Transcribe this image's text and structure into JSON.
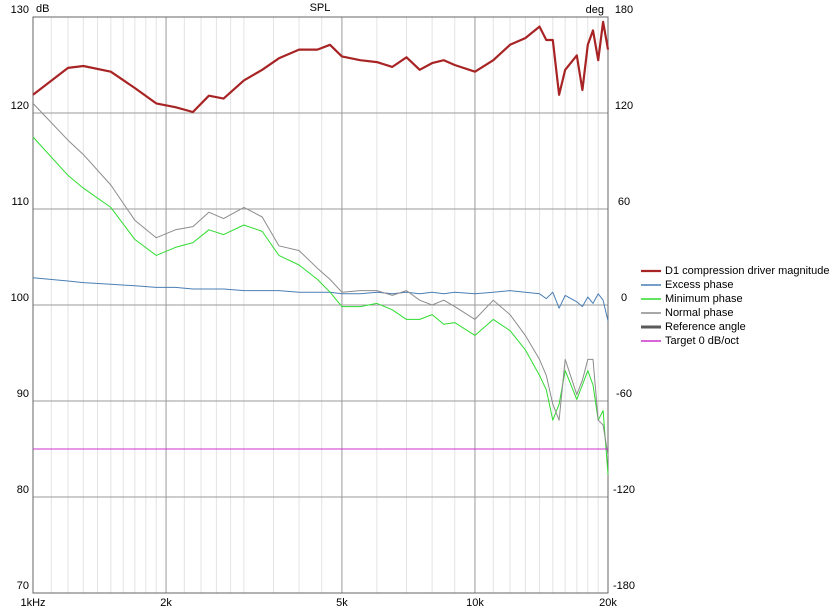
{
  "chart_data": {
    "type": "line",
    "title": "SPL",
    "ylabel": "dB",
    "y2label": "deg",
    "log_x": true,
    "grid": true,
    "legend_position": "right",
    "xlim": [
      1000,
      20000
    ],
    "xticks": [
      {
        "value": 1000,
        "label": "1kHz"
      },
      {
        "value": 2000,
        "label": "2k"
      },
      {
        "value": 5000,
        "label": "5k"
      },
      {
        "value": 10000,
        "label": "10k"
      },
      {
        "value": 20000,
        "label": "20k"
      }
    ],
    "x_minor_ticks": [
      1100,
      1200,
      1300,
      1400,
      1500,
      1600,
      1700,
      1800,
      1900,
      2200,
      2400,
      2600,
      2800,
      3000,
      3500,
      4000,
      4500,
      6000,
      7000,
      8000,
      9000,
      11000,
      12000,
      13000,
      14000,
      15000,
      16000,
      17000,
      18000,
      19000
    ],
    "ylim": [
      70,
      130
    ],
    "yticks": [
      70,
      80,
      90,
      100,
      110,
      120,
      130
    ],
    "y2lim": [
      -180,
      180
    ],
    "y2ticks": [
      -180,
      -120,
      -60,
      0,
      60,
      120,
      180
    ],
    "x": [
      1000,
      1200,
      1300,
      1500,
      1700,
      1900,
      2100,
      2300,
      2500,
      2700,
      3000,
      3300,
      3600,
      4000,
      4400,
      4700,
      5000,
      5500,
      6000,
      6500,
      7000,
      7500,
      8000,
      8500,
      9000,
      10000,
      11000,
      12000,
      13000,
      14000,
      14500,
      15000,
      15500,
      16000,
      17000,
      17500,
      18000,
      18500,
      19000,
      19500,
      20000
    ],
    "series": [
      {
        "name": "D1 compression driver magnitude",
        "color": "#a82424",
        "width": 2.2,
        "values": [
          121.9,
          124.7,
          124.9,
          124.3,
          122.6,
          121.0,
          120.6,
          120.1,
          121.8,
          121.5,
          123.4,
          124.5,
          125.7,
          126.6,
          126.6,
          127.1,
          125.9,
          125.5,
          125.3,
          124.8,
          125.8,
          124.5,
          125.2,
          125.5,
          125.0,
          124.3,
          125.5,
          127.1,
          127.8,
          129.0,
          127.6,
          127.6,
          121.9,
          124.5,
          126.0,
          122.4,
          127.1,
          128.6,
          125.5,
          129.5,
          126.6
        ]
      },
      {
        "name": "Excess phase",
        "color": "#4a7fb5",
        "axis": "y2",
        "width": 1,
        "values": [
          17,
          15,
          14,
          13,
          12,
          11,
          11,
          10,
          10,
          10,
          9,
          9,
          9,
          8,
          8,
          8,
          7,
          7,
          8,
          7,
          8,
          7,
          8,
          7,
          8,
          7,
          8,
          9,
          8,
          7,
          4,
          8,
          -2,
          6,
          2,
          -1,
          5,
          1,
          7,
          3,
          -10
        ]
      },
      {
        "name": "Minimum phase",
        "color": "#2fdc2f",
        "axis": "y2",
        "width": 1,
        "values": [
          105,
          81,
          73,
          61,
          41,
          31,
          36,
          39,
          47,
          44,
          50,
          46,
          31,
          25,
          16,
          8,
          -1,
          -1,
          1,
          -3,
          -9,
          -9,
          -6,
          -12,
          -11,
          -19,
          -9,
          -16,
          -28,
          -44,
          -53,
          -72,
          -62,
          -41,
          -59,
          -50,
          -41,
          -50,
          -72,
          -66,
          -106
        ]
      },
      {
        "name": "Normal phase",
        "color": "#8c8c8c",
        "axis": "y2",
        "width": 1,
        "values": [
          126,
          103,
          94,
          75,
          53,
          42,
          47,
          49,
          58,
          54,
          61,
          55,
          37,
          34,
          23,
          16,
          8,
          9,
          9,
          6,
          9,
          3,
          0,
          3,
          -1,
          -9,
          3,
          -6,
          -19,
          -34,
          -44,
          -62,
          -72,
          -34,
          -56,
          -47,
          -34,
          -34,
          -72,
          -75,
          -94
        ]
      },
      {
        "name": "Reference angle",
        "color": "#5a5a5a",
        "axis": "y2",
        "width": 3,
        "values": [
          null,
          null,
          null,
          null,
          null,
          null,
          null,
          null,
          null,
          null,
          null,
          null,
          null,
          null,
          null,
          null,
          null,
          null,
          null,
          null,
          null,
          null,
          null,
          null,
          null,
          null,
          null,
          null,
          null,
          null,
          null,
          null,
          null,
          null,
          null,
          null,
          null,
          null,
          null,
          null,
          null
        ]
      },
      {
        "name": "Target 0 dB/oct",
        "color": "#cc33cc",
        "width": 1,
        "values": [
          85,
          85,
          85,
          85,
          85,
          85,
          85,
          85,
          85,
          85,
          85,
          85,
          85,
          85,
          85,
          85,
          85,
          85,
          85,
          85,
          85,
          85,
          85,
          85,
          85,
          85,
          85,
          85,
          85,
          85,
          85,
          85,
          85,
          85,
          85,
          85,
          85,
          85,
          85,
          85,
          85
        ]
      }
    ]
  }
}
